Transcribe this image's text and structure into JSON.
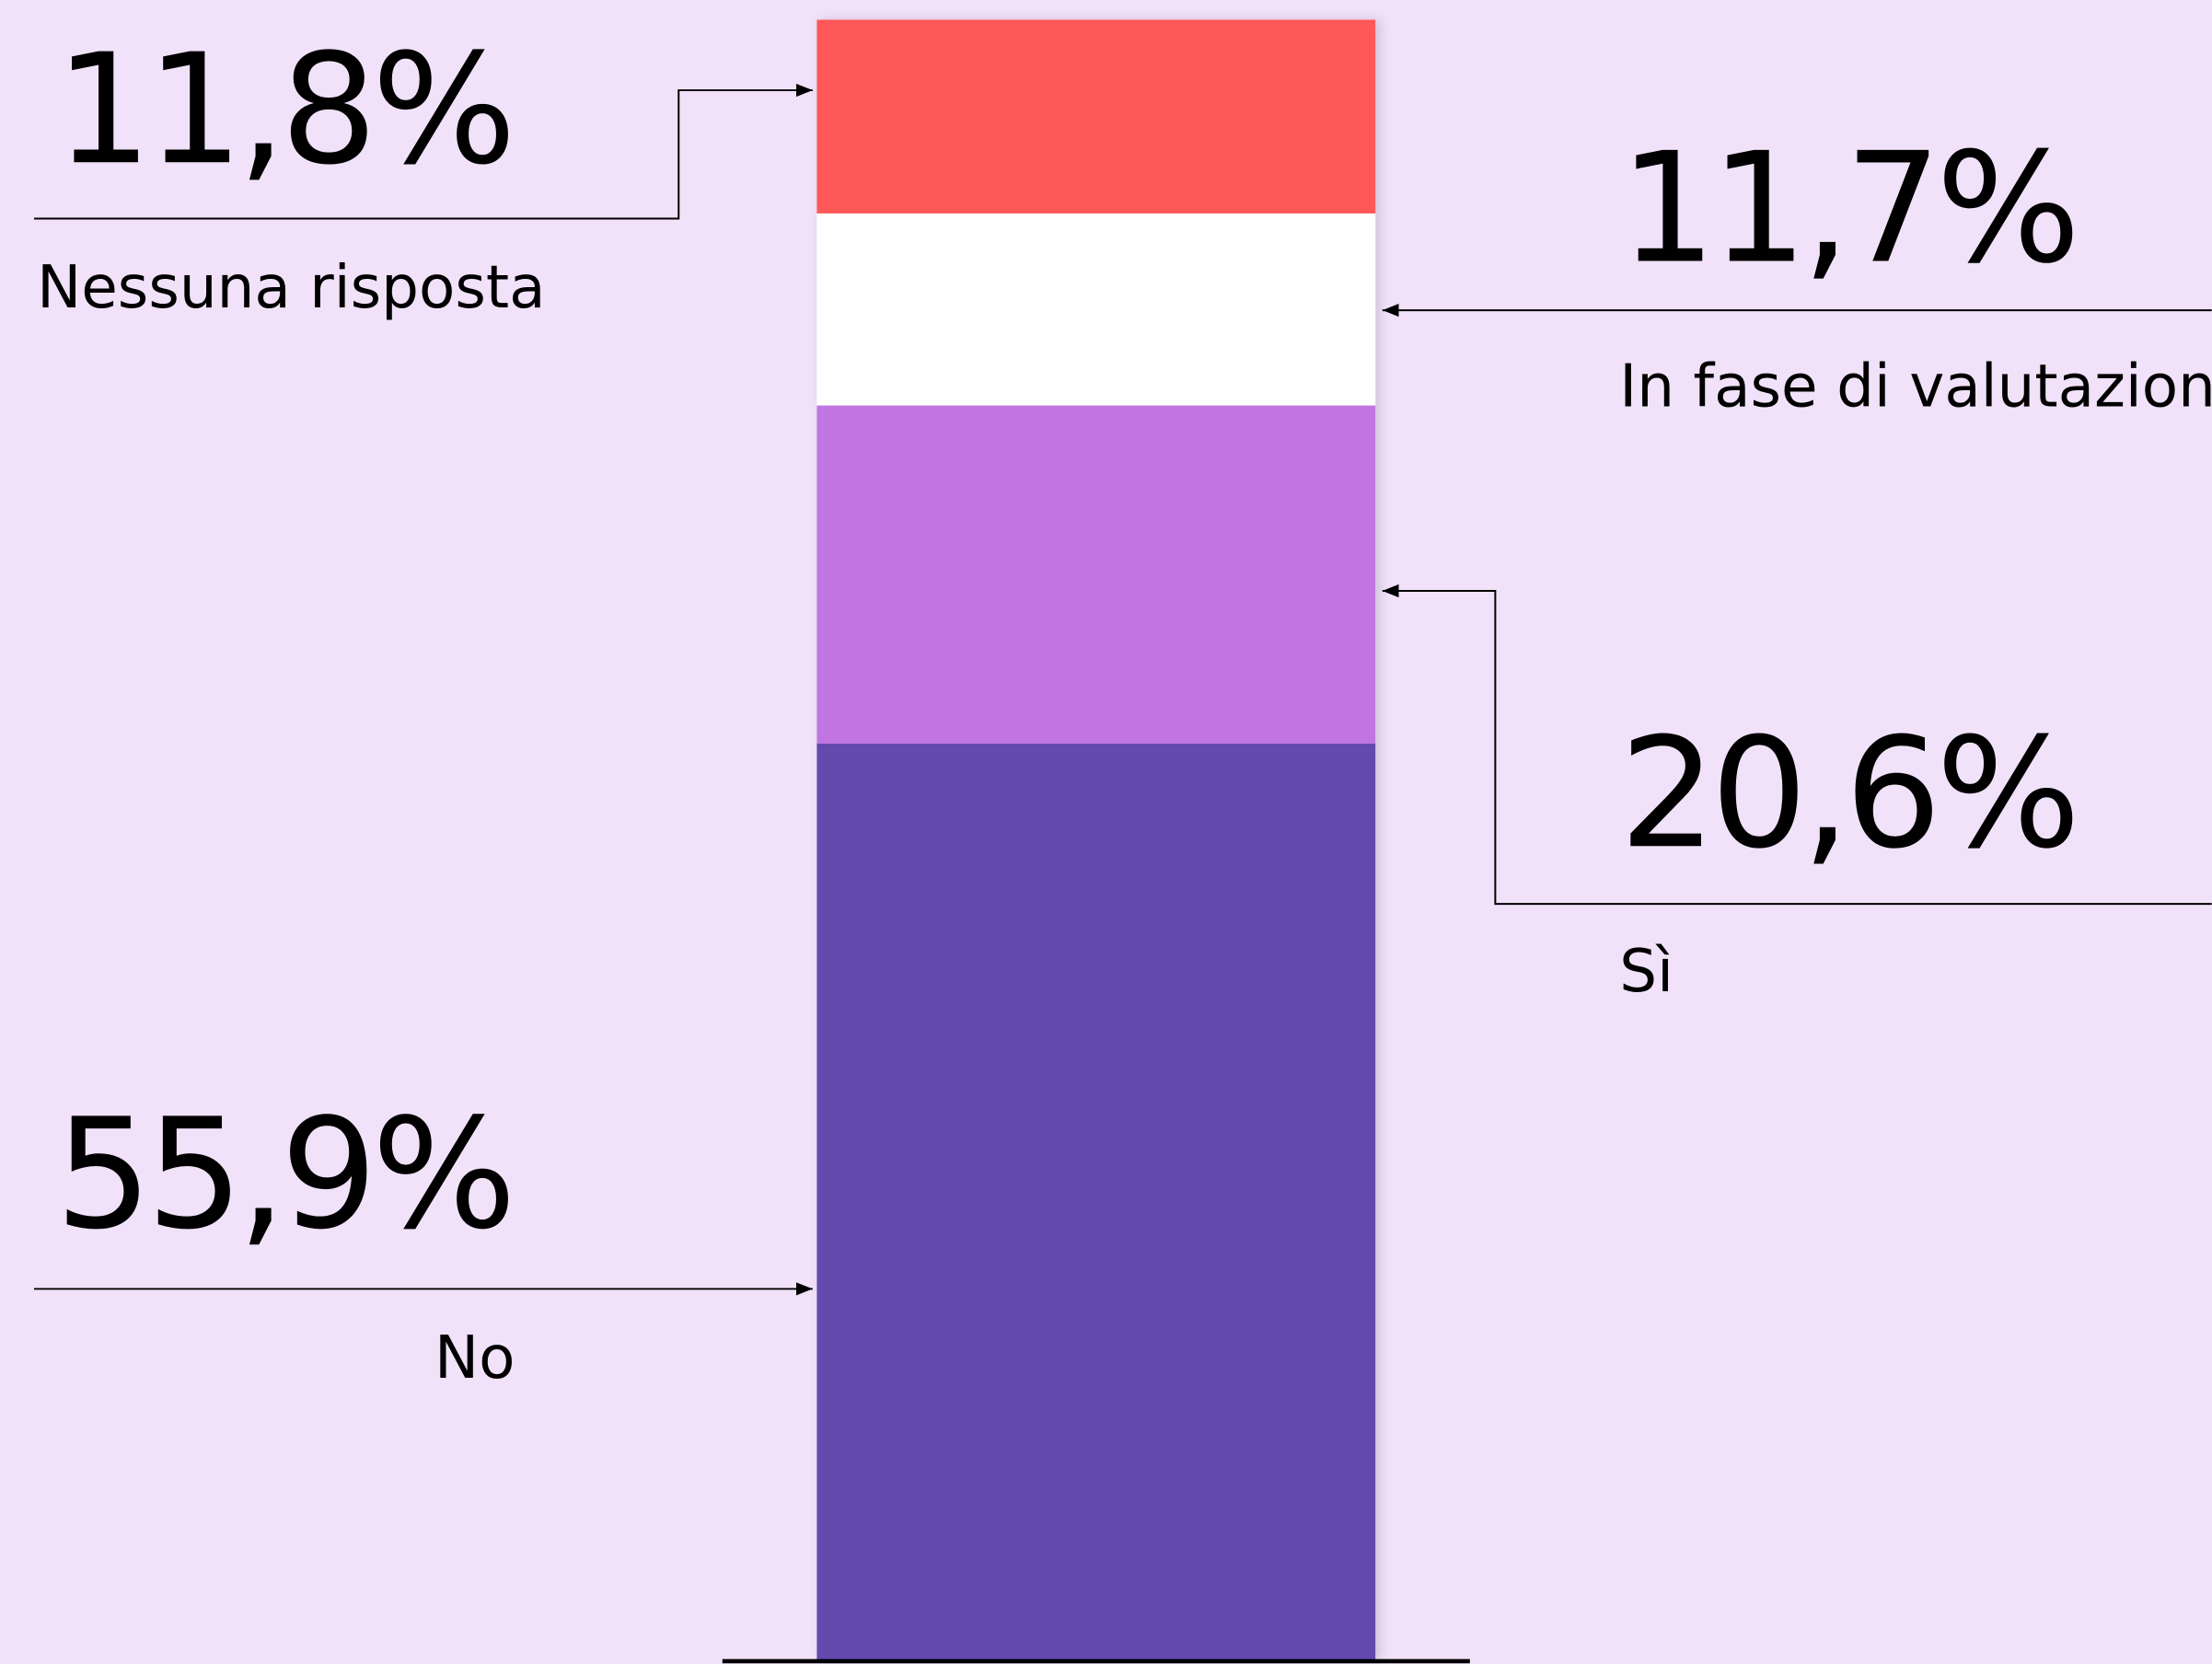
{
  "chart_data": {
    "type": "stacked_bar",
    "series": [
      {
        "name": "No",
        "color": "#634aae",
        "values": [
          55.9
        ],
        "value_labels": [
          "55,9%"
        ]
      },
      {
        "name": "Sì",
        "color": "#c074e3",
        "values": [
          20.6
        ],
        "value_labels": [
          "20,6%"
        ]
      },
      {
        "name": "In fase di valutazione",
        "color": "#ffffff",
        "values": [
          11.7
        ],
        "value_labels": [
          "11,7%"
        ]
      },
      {
        "name": "Nessuna risposta",
        "color": "#ff5858",
        "values": [
          11.8
        ],
        "value_labels": [
          "11,8%"
        ]
      }
    ]
  }
}
